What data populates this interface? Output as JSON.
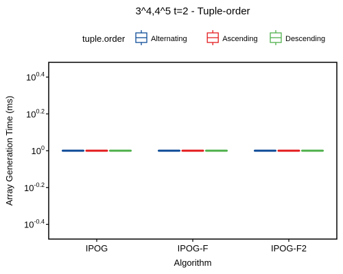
{
  "chart_data": {
    "type": "boxplot",
    "title": "3^4,4^5 t=2 - Tuple-order",
    "xlabel": "Algorithm",
    "ylabel": "Array Generation Time (ms)",
    "categories": [
      "IPOG",
      "IPOG-F",
      "IPOG-F2"
    ],
    "y_scale": "log10",
    "ylim_exponent": [
      -0.48,
      0.48
    ],
    "y_ticks": [
      {
        "exp": 0.4,
        "base": "10",
        "sup": "0.4"
      },
      {
        "exp": 0.2,
        "base": "10",
        "sup": "0.2"
      },
      {
        "exp": 0,
        "base": "10",
        "sup": "0"
      },
      {
        "exp": -0.2,
        "base": "10",
        "sup": "-0.2"
      },
      {
        "exp": -0.4,
        "base": "10",
        "sup": "-0.4"
      }
    ],
    "legend": {
      "title": "tuple.order",
      "placement": "top",
      "entries": [
        {
          "name": "Alternating",
          "color": "#0c4a96"
        },
        {
          "name": "Ascending",
          "color": "#e31a1c"
        },
        {
          "name": "Descending",
          "color": "#4daf4a"
        }
      ]
    },
    "series": [
      {
        "name": "Alternating",
        "values": [
          1,
          1,
          1
        ]
      },
      {
        "name": "Ascending",
        "values": [
          1,
          1,
          1
        ]
      },
      {
        "name": "Descending",
        "values": [
          1,
          1,
          1
        ]
      }
    ],
    "grid": false
  }
}
